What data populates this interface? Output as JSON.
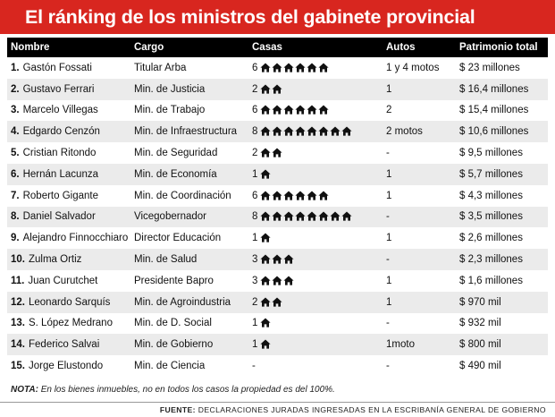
{
  "title": "El ránking de los ministros del gabinete provincial",
  "columns": {
    "name": "Nombre",
    "role": "Cargo",
    "houses": "Casas",
    "cars": "Autos",
    "assets": "Patrimonio total"
  },
  "rows": [
    {
      "rank": "1.",
      "name": "Gastón Fossati",
      "role": "Titular Arba",
      "houses": 6,
      "houses_text": "6",
      "cars": "1 y 4 motos",
      "assets": "$ 23 millones"
    },
    {
      "rank": "2.",
      "name": "Gustavo Ferrari",
      "role": "Min. de Justicia",
      "houses": 2,
      "houses_text": "2",
      "cars": "1",
      "assets": "$ 16,4 millones"
    },
    {
      "rank": "3.",
      "name": "Marcelo Villegas",
      "role": "Min. de Trabajo",
      "houses": 6,
      "houses_text": "6",
      "cars": "2",
      "assets": "$ 15,4 millones"
    },
    {
      "rank": "4.",
      "name": "Edgardo Cenzón",
      "role": "Min. de Infraestructura",
      "houses": 8,
      "houses_text": "8",
      "cars": "2 motos",
      "assets": "$ 10,6 millones"
    },
    {
      "rank": "5.",
      "name": "Cristian Ritondo",
      "role": "Min. de Seguridad",
      "houses": 2,
      "houses_text": "2",
      "cars": "-",
      "assets": "$ 9,5 millones"
    },
    {
      "rank": "6.",
      "name": "Hernán Lacunza",
      "role": "Min. de Economía",
      "houses": 1,
      "houses_text": "1",
      "cars": "1",
      "assets": "$ 5,7 millones"
    },
    {
      "rank": "7.",
      "name": "Roberto Gigante",
      "role": "Min. de Coordinación",
      "houses": 6,
      "houses_text": "6",
      "cars": "1",
      "assets": "$ 4,3 millones"
    },
    {
      "rank": "8.",
      "name": "Daniel Salvador",
      "role": "Vicegobernador",
      "houses": 8,
      "houses_text": "8",
      "cars": "-",
      "assets": "$ 3,5 millones"
    },
    {
      "rank": "9.",
      "name": "Alejandro Finnocchiaro",
      "role": "Director Educación",
      "houses": 1,
      "houses_text": "1",
      "cars": "1",
      "assets": "$ 2,6 millones"
    },
    {
      "rank": "10.",
      "name": "Zulma Ortiz",
      "role": "Min. de Salud",
      "houses": 3,
      "houses_text": "3",
      "cars": "-",
      "assets": "$ 2,3 millones"
    },
    {
      "rank": "11.",
      "name": "Juan Curutchet",
      "role": "Presidente Bapro",
      "houses": 3,
      "houses_text": "3",
      "cars": "1",
      "assets": "$ 1,6 millones"
    },
    {
      "rank": "12.",
      "name": "Leonardo Sarquís",
      "role": "Min. de Agroindustria",
      "houses": 2,
      "houses_text": "2",
      "cars": "1",
      "assets": "$ 970 mil"
    },
    {
      "rank": "13.",
      "name": "S. López Medrano",
      "role": "Min. de D. Social",
      "houses": 1,
      "houses_text": "1",
      "cars": "-",
      "assets": "$ 932 mil"
    },
    {
      "rank": "14.",
      "name": "Federico Salvai",
      "role": "Min. de Gobierno",
      "houses": 1,
      "houses_text": "1",
      "cars": "1moto",
      "assets": "$ 800 mil"
    },
    {
      "rank": "15.",
      "name": "Jorge Elustondo",
      "role": "Min. de Ciencia",
      "houses": 0,
      "houses_text": "-",
      "cars": "-",
      "assets": "$ 490 mil"
    }
  ],
  "note": {
    "label": "NOTA:",
    "text": " En los bienes inmuebles, no en todos los casos la propiedad es del 100%."
  },
  "source": {
    "label": "FUENTE:",
    "text": " DECLARACIONES JURADAS INGRESADAS EN LA ESCRIBANÍA GENERAL DE GOBIERNO"
  },
  "colors": {
    "banner": "#d8261f",
    "header_bg": "#000000",
    "row_alt": "#ebebeb"
  },
  "icons": {
    "house": "house-icon"
  }
}
